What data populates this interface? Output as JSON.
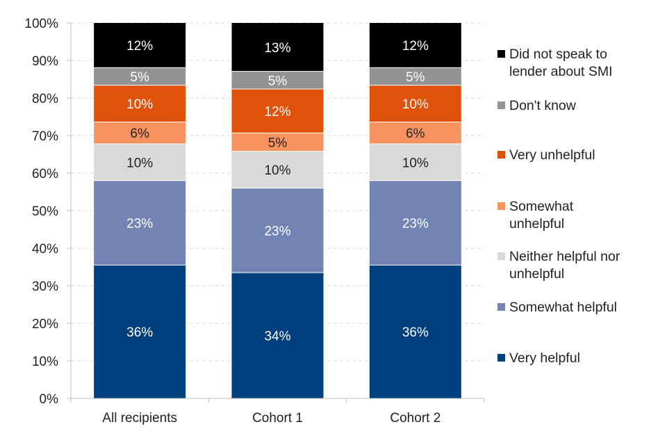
{
  "chart_data": {
    "type": "bar",
    "stacked": true,
    "categories": [
      "All recipients",
      "Cohort 1",
      "Cohort 2"
    ],
    "ylim": [
      0,
      100
    ],
    "yticks": [
      "0%",
      "10%",
      "20%",
      "30%",
      "40%",
      "50%",
      "60%",
      "70%",
      "80%",
      "90%",
      "100%"
    ],
    "grid": true,
    "legend_placement": "right",
    "series": [
      {
        "name": "Very helpful",
        "color": "#003F7D",
        "label_color": "#ffffff",
        "values": [
          35.5,
          33.5,
          35.5
        ],
        "labels": [
          "36%",
          "34%",
          "36%"
        ]
      },
      {
        "name": "Somewhat helpful",
        "color": "#7384B4",
        "label_color": "#ffffff",
        "values": [
          22.5,
          22.5,
          22.5
        ],
        "labels": [
          "23%",
          "23%",
          "23%"
        ]
      },
      {
        "name": "Neither helpful nor unhelpful",
        "color": "#D9D9D9",
        "label_color": "#222222",
        "values": [
          9.8,
          9.8,
          9.8
        ],
        "labels": [
          "10%",
          "10%",
          "10%"
        ]
      },
      {
        "name": "Somewhat unhelpful",
        "color": "#F79361",
        "label_color": "#222222",
        "values": [
          5.8,
          4.9,
          5.8
        ],
        "labels": [
          "6%",
          "5%",
          "6%"
        ]
      },
      {
        "name": "Very unhelpful",
        "color": "#E0520A",
        "label_color": "#ffffff",
        "values": [
          9.8,
          11.7,
          9.8
        ],
        "labels": [
          "10%",
          "12%",
          "10%"
        ]
      },
      {
        "name": "Don't know",
        "color": "#939393",
        "label_color": "#ffffff",
        "values": [
          4.7,
          4.7,
          4.7
        ],
        "labels": [
          "5%",
          "5%",
          "5%"
        ]
      },
      {
        "name": "Did not speak to lender about SMI",
        "color": "#000000",
        "label_color": "#ffffff",
        "values": [
          11.9,
          12.9,
          11.9
        ],
        "labels": [
          "12%",
          "13%",
          "12%"
        ]
      }
    ],
    "legend": [
      {
        "lines": [
          "Did not speak to",
          "lender about SMI"
        ],
        "color": "#000000"
      },
      {
        "lines": [
          "Don't know"
        ],
        "color": "#939393"
      },
      {
        "lines": [
          "Very unhelpful"
        ],
        "color": "#E0520A"
      },
      {
        "lines": [
          "Somewhat",
          "unhelpful"
        ],
        "color": "#F79361"
      },
      {
        "lines": [
          "Neither helpful nor",
          "unhelpful"
        ],
        "color": "#D9D9D9"
      },
      {
        "lines": [
          "Somewhat helpful"
        ],
        "color": "#7384B4"
      },
      {
        "lines": [
          "Very helpful"
        ],
        "color": "#003F7D"
      }
    ]
  }
}
